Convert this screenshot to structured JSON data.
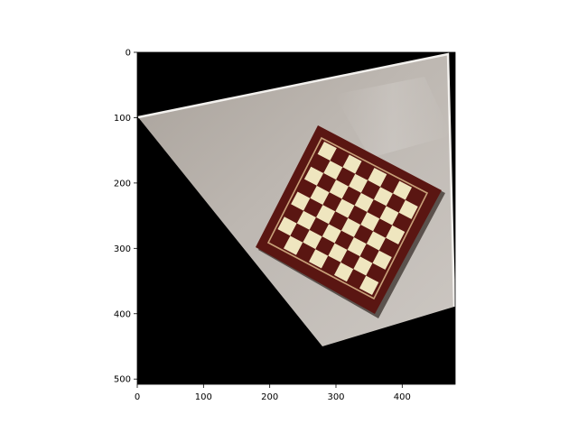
{
  "figure": {
    "background": "#ffffff",
    "axes_frame_color": "#000000"
  },
  "image": {
    "description_colors": {
      "outside_region": "#000000",
      "table_surface": "#b9b4ae",
      "board_frame": "#5a1612",
      "board_light_square": "#efe6bf",
      "board_dark_square": "#5a1612",
      "board_inlay": "#c9a27a"
    },
    "board_squares_per_side": 8
  },
  "axes": {
    "x_ticks": [
      {
        "value": 0,
        "label": "0"
      },
      {
        "value": 100,
        "label": "100"
      },
      {
        "value": 200,
        "label": "200"
      },
      {
        "value": 300,
        "label": "300"
      },
      {
        "value": 400,
        "label": "400"
      }
    ],
    "y_ticks": [
      {
        "value": 0,
        "label": "0"
      },
      {
        "value": 100,
        "label": "100"
      },
      {
        "value": 200,
        "label": "200"
      },
      {
        "value": 300,
        "label": "300"
      },
      {
        "value": 400,
        "label": "400"
      },
      {
        "value": 500,
        "label": "500"
      }
    ],
    "x_range": [
      0,
      480
    ],
    "y_range": [
      0,
      508
    ]
  }
}
